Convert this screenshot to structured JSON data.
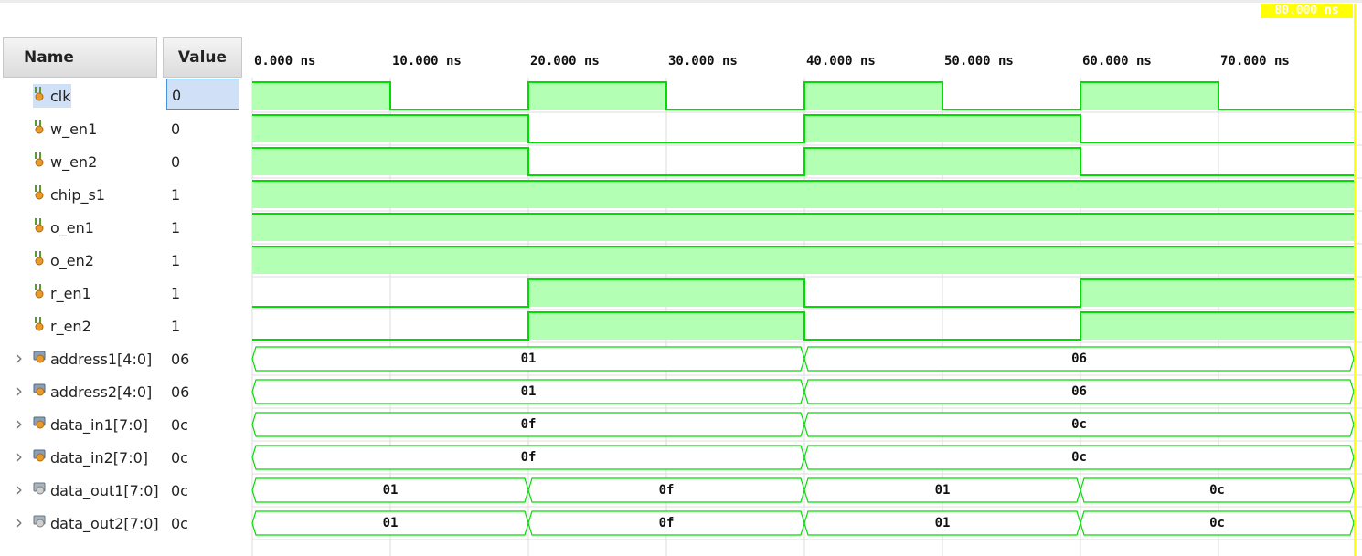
{
  "headers": {
    "name": "Name",
    "value": "Value"
  },
  "cursor": {
    "time_label": "80.000 ns",
    "time_ns": 80
  },
  "timeline": {
    "start_ns": 0,
    "end_ns": 80,
    "ticks": [
      "0.000 ns",
      "10.000 ns",
      "20.000 ns",
      "30.000 ns",
      "40.000 ns",
      "50.000 ns",
      "60.000 ns",
      "70.000 ns"
    ]
  },
  "colors": {
    "wave": "#00dd00",
    "wave_fill": "#b3ffb3",
    "cursor": "#ffff00",
    "grid": "#dddddd",
    "selection": "#cfe0f7"
  },
  "signals": [
    {
      "name": "clk",
      "value": "0",
      "kind": "bit",
      "icon": "bit-signal-icon",
      "selected": true,
      "segments": [
        {
          "t0": 0,
          "t1": 10,
          "v": "1"
        },
        {
          "t0": 10,
          "t1": 20,
          "v": "0"
        },
        {
          "t0": 20,
          "t1": 30,
          "v": "1"
        },
        {
          "t0": 30,
          "t1": 40,
          "v": "0"
        },
        {
          "t0": 40,
          "t1": 50,
          "v": "1"
        },
        {
          "t0": 50,
          "t1": 60,
          "v": "0"
        },
        {
          "t0": 60,
          "t1": 70,
          "v": "1"
        },
        {
          "t0": 70,
          "t1": 80,
          "v": "0"
        }
      ]
    },
    {
      "name": "w_en1",
      "value": "0",
      "kind": "bit",
      "icon": "bit-signal-icon",
      "segments": [
        {
          "t0": 0,
          "t1": 20,
          "v": "1"
        },
        {
          "t0": 20,
          "t1": 40,
          "v": "0"
        },
        {
          "t0": 40,
          "t1": 60,
          "v": "1"
        },
        {
          "t0": 60,
          "t1": 80,
          "v": "0"
        }
      ]
    },
    {
      "name": "w_en2",
      "value": "0",
      "kind": "bit",
      "icon": "bit-signal-icon",
      "segments": [
        {
          "t0": 0,
          "t1": 20,
          "v": "1"
        },
        {
          "t0": 20,
          "t1": 40,
          "v": "0"
        },
        {
          "t0": 40,
          "t1": 60,
          "v": "1"
        },
        {
          "t0": 60,
          "t1": 80,
          "v": "0"
        }
      ]
    },
    {
      "name": "chip_s1",
      "value": "1",
      "kind": "bit",
      "icon": "bit-signal-icon",
      "segments": [
        {
          "t0": 0,
          "t1": 80,
          "v": "1"
        }
      ]
    },
    {
      "name": "o_en1",
      "value": "1",
      "kind": "bit",
      "icon": "bit-signal-icon",
      "segments": [
        {
          "t0": 0,
          "t1": 80,
          "v": "1"
        }
      ]
    },
    {
      "name": "o_en2",
      "value": "1",
      "kind": "bit",
      "icon": "bit-signal-icon",
      "segments": [
        {
          "t0": 0,
          "t1": 80,
          "v": "1"
        }
      ]
    },
    {
      "name": "r_en1",
      "value": "1",
      "kind": "bit",
      "icon": "bit-signal-icon",
      "segments": [
        {
          "t0": 0,
          "t1": 20,
          "v": "0"
        },
        {
          "t0": 20,
          "t1": 40,
          "v": "1"
        },
        {
          "t0": 40,
          "t1": 60,
          "v": "0"
        },
        {
          "t0": 60,
          "t1": 80,
          "v": "1"
        }
      ]
    },
    {
      "name": "r_en2",
      "value": "1",
      "kind": "bit",
      "icon": "bit-signal-icon",
      "segments": [
        {
          "t0": 0,
          "t1": 20,
          "v": "0"
        },
        {
          "t0": 20,
          "t1": 40,
          "v": "1"
        },
        {
          "t0": 40,
          "t1": 60,
          "v": "0"
        },
        {
          "t0": 60,
          "t1": 80,
          "v": "1"
        }
      ]
    },
    {
      "name": "address1[4:0]",
      "value": "06",
      "kind": "bus",
      "icon": "bus-input-icon",
      "segments": [
        {
          "t0": 0,
          "t1": 40,
          "v": "01"
        },
        {
          "t0": 40,
          "t1": 80,
          "v": "06"
        }
      ]
    },
    {
      "name": "address2[4:0]",
      "value": "06",
      "kind": "bus",
      "icon": "bus-input-icon",
      "segments": [
        {
          "t0": 0,
          "t1": 40,
          "v": "01"
        },
        {
          "t0": 40,
          "t1": 80,
          "v": "06"
        }
      ]
    },
    {
      "name": "data_in1[7:0]",
      "value": "0c",
      "kind": "bus",
      "icon": "bus-input-icon",
      "segments": [
        {
          "t0": 0,
          "t1": 40,
          "v": "0f"
        },
        {
          "t0": 40,
          "t1": 80,
          "v": "0c"
        }
      ]
    },
    {
      "name": "data_in2[7:0]",
      "value": "0c",
      "kind": "bus",
      "icon": "bus-input-icon",
      "segments": [
        {
          "t0": 0,
          "t1": 40,
          "v": "0f"
        },
        {
          "t0": 40,
          "t1": 80,
          "v": "0c"
        }
      ]
    },
    {
      "name": "data_out1[7:0]",
      "value": "0c",
      "kind": "bus",
      "icon": "bus-output-icon",
      "segments": [
        {
          "t0": 0,
          "t1": 20,
          "v": "01"
        },
        {
          "t0": 20,
          "t1": 40,
          "v": "0f"
        },
        {
          "t0": 40,
          "t1": 60,
          "v": "01"
        },
        {
          "t0": 60,
          "t1": 80,
          "v": "0c"
        }
      ]
    },
    {
      "name": "data_out2[7:0]",
      "value": "0c",
      "kind": "bus",
      "icon": "bus-output-icon",
      "segments": [
        {
          "t0": 0,
          "t1": 20,
          "v": "01"
        },
        {
          "t0": 20,
          "t1": 40,
          "v": "0f"
        },
        {
          "t0": 40,
          "t1": 60,
          "v": "01"
        },
        {
          "t0": 60,
          "t1": 80,
          "v": "0c"
        }
      ]
    }
  ]
}
